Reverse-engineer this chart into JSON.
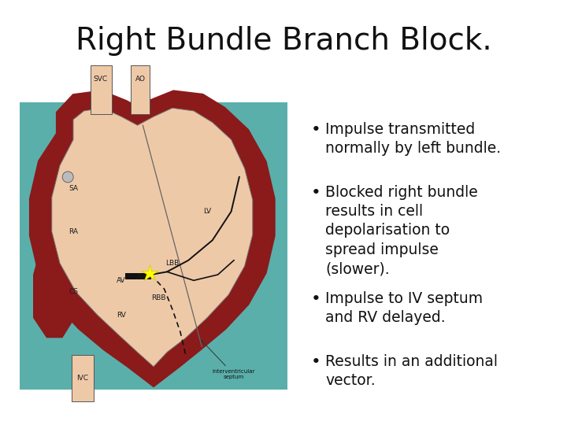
{
  "title": "Right Bundle Branch Block.",
  "title_fontsize": 28,
  "background_color": "#ffffff",
  "bullet_points": [
    "Impulse transmitted\nnormally by left bundle.",
    "Blocked right bundle\nresults in cell\ndepolarisation to\nspread impulse\n(slower).",
    "Impulse to IV septum\nand RV delayed.",
    "Results in an additional\nvector."
  ],
  "bullet_fontsize": 13.5,
  "teal_bg": "#5aafab",
  "heart_skin": "#eec9a8",
  "heart_border": "#8b1a1a",
  "label_fontsize": 6.5,
  "label_color": "#1a1a1a",
  "star_color": "#ffff00",
  "annotation_fontsize": 5.0
}
